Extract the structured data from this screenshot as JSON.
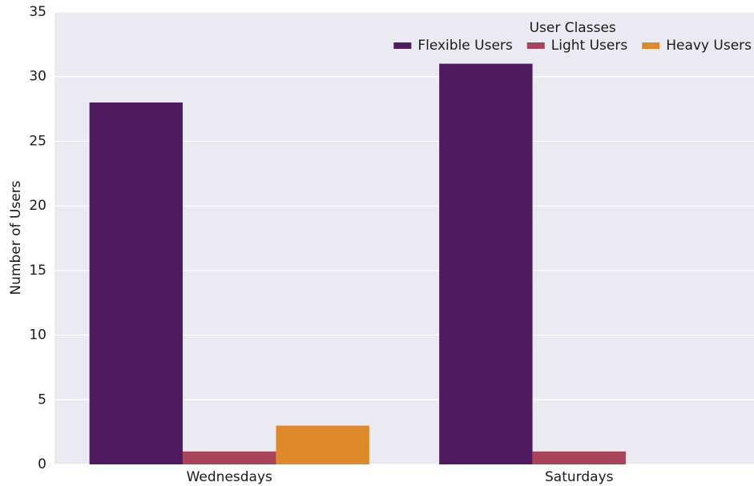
{
  "chart_data": {
    "type": "bar",
    "categories": [
      "Wednesdays",
      "Saturdays"
    ],
    "series": [
      {
        "name": "Flexible Users",
        "color": "#4f1a5e",
        "values": [
          28,
          31
        ]
      },
      {
        "name": "Light Users",
        "color": "#a8435a",
        "values": [
          1,
          1
        ]
      },
      {
        "name": "Heavy Users",
        "color": "#de8a2a",
        "values": [
          3,
          0
        ]
      }
    ],
    "ylabel": "Number of Users",
    "legend_title": "User Classes",
    "legend": "upper right",
    "ylim": [
      0,
      35
    ],
    "yticks": [
      0,
      5,
      10,
      15,
      20,
      25,
      30,
      35
    ],
    "grid": true
  }
}
